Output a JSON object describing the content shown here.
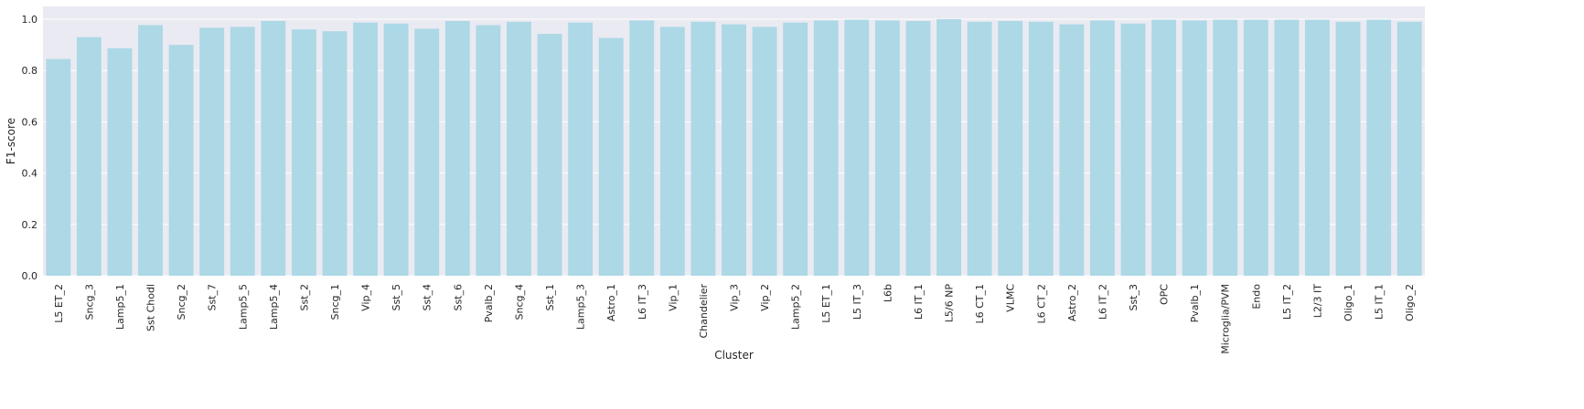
{
  "chart_data": {
    "type": "bar",
    "xlabel": "Cluster",
    "ylabel": "F1-score",
    "ylim": [
      0,
      1.05
    ],
    "yticks": [
      "0.0",
      "0.2",
      "0.4",
      "0.6",
      "0.8",
      "1.0"
    ],
    "grid": true,
    "bar_color": "#add8e6",
    "plot_background": "#eaeaf2",
    "categories": [
      "L5 ET_2",
      "Sncg_3",
      "Lamp5_1",
      "Sst Chodl",
      "Sncg_2",
      "Sst_7",
      "Lamp5_5",
      "Lamp5_4",
      "Sst_2",
      "Sncg_1",
      "Vip_4",
      "Sst_5",
      "Sst_4",
      "Sst_6",
      "Pvalb_2",
      "Sncg_4",
      "Sst_1",
      "Lamp5_3",
      "Astro_1",
      "L6 IT_3",
      "Vip_1",
      "Chandelier",
      "Vip_3",
      "Vip_2",
      "Lamp5_2",
      "L5 ET_1",
      "L5 IT_3",
      "L6b",
      "L6 IT_1",
      "L5/6 NP",
      "L6 CT_1",
      "VLMC",
      "L6 CT_2",
      "Astro_2",
      "L6 IT_2",
      "Sst_3",
      "OPC",
      "Pvalb_1",
      "Microglia/PVM",
      "Endo",
      "L5 IT_2",
      "L2/3 IT",
      "Oligo_1",
      "L5 IT_1",
      "Oligo_2"
    ],
    "values": [
      0.845,
      0.93,
      0.887,
      0.977,
      0.9,
      0.967,
      0.97,
      0.993,
      0.96,
      0.953,
      0.987,
      0.983,
      0.963,
      0.993,
      0.977,
      0.99,
      0.943,
      0.987,
      0.927,
      0.995,
      0.97,
      0.99,
      0.98,
      0.97,
      0.987,
      0.995,
      0.998,
      0.995,
      0.993,
      1.0,
      0.99,
      0.993,
      0.99,
      0.98,
      0.995,
      0.983,
      0.998,
      0.995,
      0.998,
      0.998,
      0.998,
      0.998,
      0.99,
      0.998,
      0.99
    ]
  }
}
